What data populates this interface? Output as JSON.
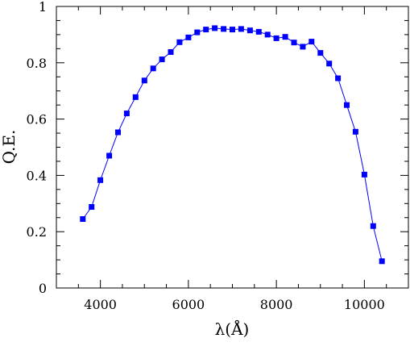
{
  "chart_data": {
    "type": "line",
    "title": "",
    "xlabel": "λ(Å)",
    "ylabel": "Q.E.",
    "xlim": [
      3000,
      11000
    ],
    "ylim": [
      0,
      1
    ],
    "xticks": [
      4000,
      6000,
      8000,
      10000
    ],
    "yticks": [
      0,
      0.2,
      0.4,
      0.6,
      0.8,
      1
    ],
    "xtick_labels": [
      "4000",
      "6000",
      "8000",
      "10000"
    ],
    "ytick_labels": [
      "0",
      "0.2",
      "0.4",
      "0.6",
      "0.8",
      "1"
    ],
    "grid": false,
    "series": [
      {
        "color": "#0000ff",
        "marker": "square",
        "x": [
          3600,
          3800,
          4000,
          4200,
          4400,
          4600,
          4800,
          5000,
          5200,
          5400,
          5600,
          5800,
          6000,
          6200,
          6400,
          6600,
          6800,
          7000,
          7200,
          7400,
          7600,
          7800,
          8000,
          8200,
          8400,
          8600,
          8800,
          9000,
          9200,
          9400,
          9600,
          9800,
          10000,
          10200,
          10400
        ],
        "y": [
          0.245,
          0.288,
          0.383,
          0.47,
          0.553,
          0.62,
          0.678,
          0.737,
          0.78,
          0.812,
          0.838,
          0.873,
          0.89,
          0.908,
          0.918,
          0.923,
          0.92,
          0.918,
          0.92,
          0.915,
          0.91,
          0.9,
          0.887,
          0.892,
          0.872,
          0.857,
          0.875,
          0.835,
          0.797,
          0.745,
          0.65,
          0.555,
          0.403,
          0.22,
          0.095
        ]
      }
    ]
  }
}
